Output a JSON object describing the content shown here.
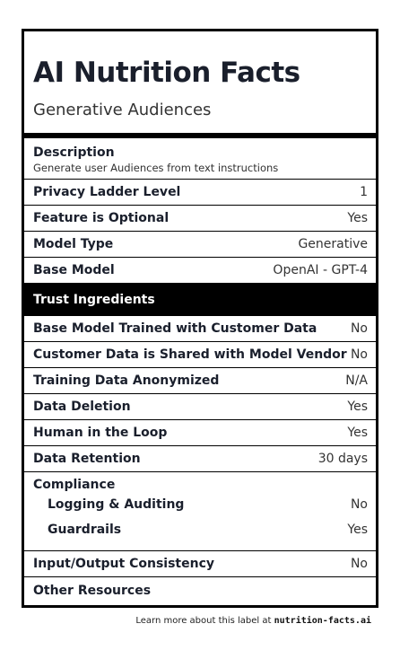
{
  "header": {
    "title": "AI Nutrition Facts",
    "subtitle": "Generative Audiences"
  },
  "description": {
    "label": "Description",
    "text": "Generate user Audiences from text instructions"
  },
  "rows_top": [
    {
      "label": "Privacy Ladder Level",
      "value": "1"
    },
    {
      "label": "Feature is Optional",
      "value": "Yes"
    },
    {
      "label": "Model Type",
      "value": "Generative"
    },
    {
      "label": "Base Model",
      "value": "OpenAI - GPT-4"
    }
  ],
  "trust_section": {
    "label": "Trust Ingredients"
  },
  "rows_trust": [
    {
      "label": "Base Model Trained with Customer Data",
      "value": "No"
    },
    {
      "label": "Customer Data is Shared with Model Vendor",
      "value": "No"
    },
    {
      "label": "Training Data Anonymized",
      "value": "N/A"
    },
    {
      "label": "Data Deletion",
      "value": "Yes"
    },
    {
      "label": "Human in the Loop",
      "value": "Yes"
    },
    {
      "label": "Data Retention",
      "value": "30 days"
    }
  ],
  "compliance": {
    "label": "Compliance",
    "items": [
      {
        "label": "Logging & Auditing",
        "value": "No"
      },
      {
        "label": "Guardrails",
        "value": "Yes"
      }
    ]
  },
  "rows_bottom": [
    {
      "label": "Input/Output Consistency",
      "value": "No"
    },
    {
      "label": "Other Resources",
      "value": ""
    }
  ],
  "footer": {
    "text": "Learn more about this label at",
    "link": "nutrition-facts.ai"
  }
}
